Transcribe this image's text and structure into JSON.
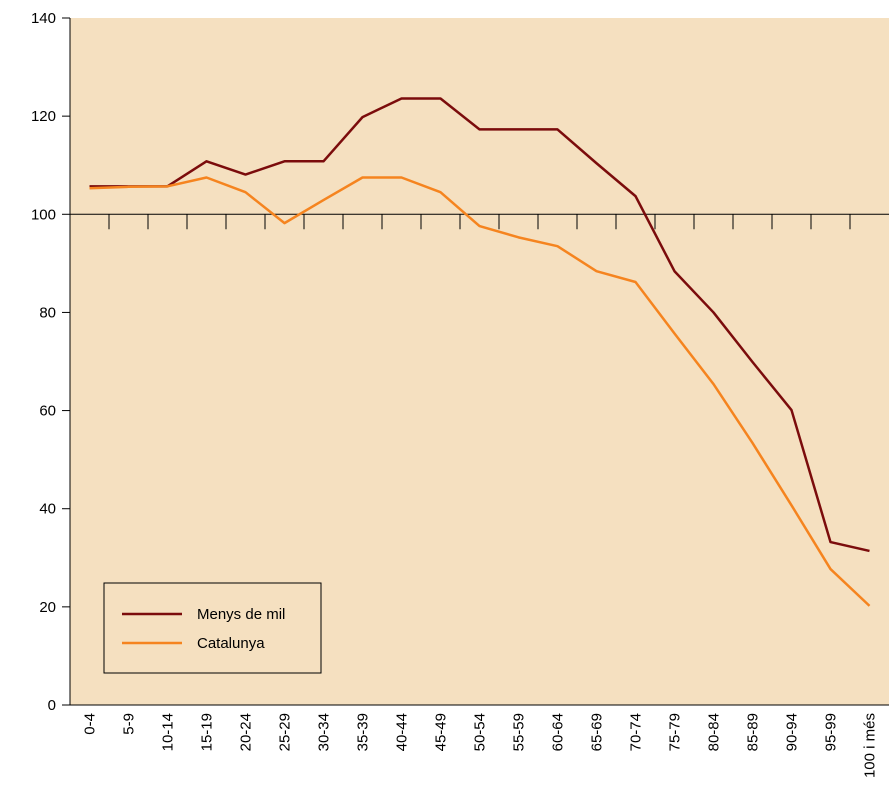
{
  "chart_data": {
    "type": "line",
    "categories": [
      "0-4",
      "5-9",
      "10-14",
      "15-19",
      "20-24",
      "25-29",
      "30-34",
      "35-39",
      "40-44",
      "45-49",
      "50-54",
      "55-59",
      "60-64",
      "65-69",
      "70-74",
      "75-79",
      "80-84",
      "85-89",
      "90-94",
      "95-99",
      "100 i més"
    ],
    "series": [
      {
        "name": "Menys de mil",
        "color": "#7b0c0c",
        "values": [
          105.7,
          105.7,
          105.7,
          110.8,
          108.1,
          110.8,
          110.8,
          119.8,
          123.6,
          123.6,
          117.3,
          117.3,
          117.3,
          110.4,
          103.7,
          88.4,
          80.0,
          69.9,
          60.1,
          33.2,
          31.4
        ]
      },
      {
        "name": "Catalunya",
        "color": "#f5841f",
        "values": [
          105.3,
          105.6,
          105.7,
          107.5,
          104.5,
          98.2,
          102.9,
          107.5,
          107.5,
          104.5,
          97.6,
          95.3,
          93.5,
          88.4,
          86.2,
          75.7,
          65.4,
          53.4,
          40.7,
          27.7,
          20.2
        ]
      }
    ],
    "ylim": [
      0,
      140
    ],
    "yticks": [
      0,
      20,
      40,
      60,
      80,
      100,
      120,
      140
    ],
    "reference_line": 100,
    "background": "#f5e0c0",
    "legend": "lower left"
  }
}
